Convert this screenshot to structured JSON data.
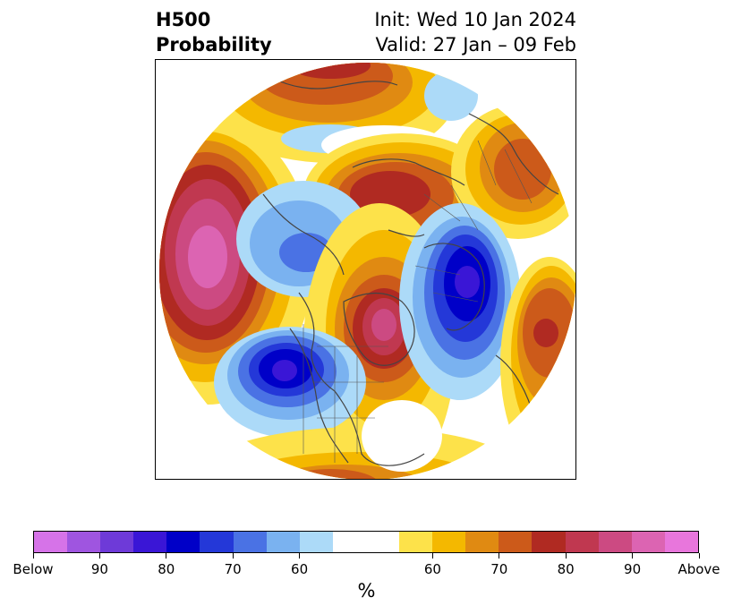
{
  "title": {
    "left_line1": "H500",
    "left_line2": "Probability",
    "right_line1": "Init: Wed 10 Jan 2024",
    "right_line2": "Valid: 27 Jan – 09 Feb"
  },
  "map": {
    "projection": "north-polar-stereographic",
    "features": [
      {
        "name": "above-normal-pacific-aleutians",
        "category": "above",
        "peak": "Above"
      },
      {
        "name": "above-normal-greenland-canada",
        "category": "above",
        "peak": "90"
      },
      {
        "name": "above-normal-northeast-russia",
        "category": "above",
        "peak": "80"
      },
      {
        "name": "above-normal-scandinavia-russia",
        "category": "above",
        "peak": "80"
      },
      {
        "name": "above-normal-central-asia",
        "category": "above",
        "peak": "80"
      },
      {
        "name": "below-normal-western-north-america",
        "category": "below",
        "peak": "90"
      },
      {
        "name": "below-normal-europe",
        "category": "below",
        "peak": "90"
      },
      {
        "name": "below-normal-siberia",
        "category": "below",
        "peak": "60"
      }
    ]
  },
  "colorbar": {
    "colors": [
      "#d673e8",
      "#9f55e0",
      "#6e3ad8",
      "#3a16d6",
      "#0000c8",
      "#2438d8",
      "#4a72e4",
      "#7ab2f0",
      "#acdaf8",
      "#ffffff",
      "#ffffff",
      "#fde24a",
      "#f4b800",
      "#e08a12",
      "#cc5a1a",
      "#b02a22",
      "#c03850",
      "#cc4a82",
      "#dc64b2",
      "#e876dc"
    ],
    "tick_labels": [
      "Below",
      "90",
      "80",
      "70",
      "60",
      "60",
      "70",
      "80",
      "90",
      "Above"
    ],
    "unit": "%"
  }
}
